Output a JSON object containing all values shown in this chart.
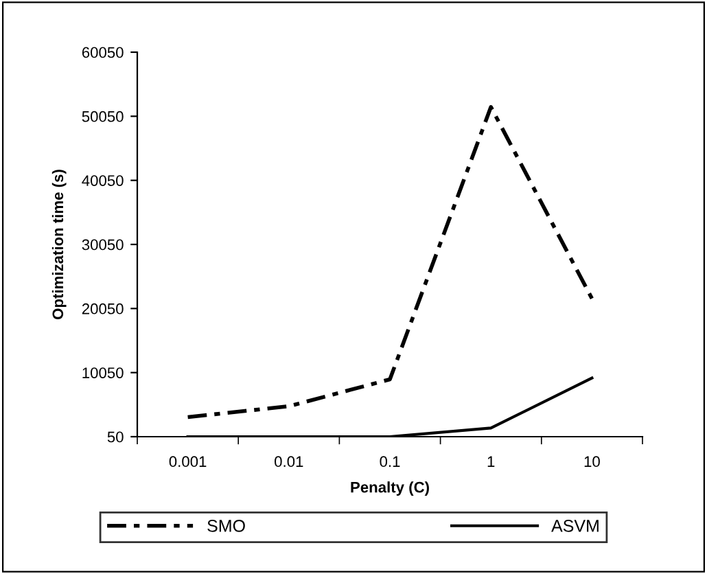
{
  "chart_data": {
    "type": "line",
    "xlabel": "Penalty (C)",
    "ylabel": "Optimization time (s)",
    "categories": [
      "0.001",
      "0.01",
      "0.1",
      "1",
      "10"
    ],
    "series": [
      {
        "name": "SMO",
        "color": "#000000",
        "line_style": "dashed",
        "values": [
          3100,
          4800,
          9000,
          51500,
          21600
        ]
      },
      {
        "name": "ASVM",
        "color": "#000000",
        "line_style": "solid",
        "values": [
          50,
          50,
          50,
          1400,
          9200
        ]
      }
    ],
    "ylim": [
      50,
      60050
    ],
    "yticks": [
      50,
      10050,
      20050,
      30050,
      40050,
      50050,
      60050
    ],
    "grid": false,
    "legend": "bottom",
    "marker": "none"
  }
}
